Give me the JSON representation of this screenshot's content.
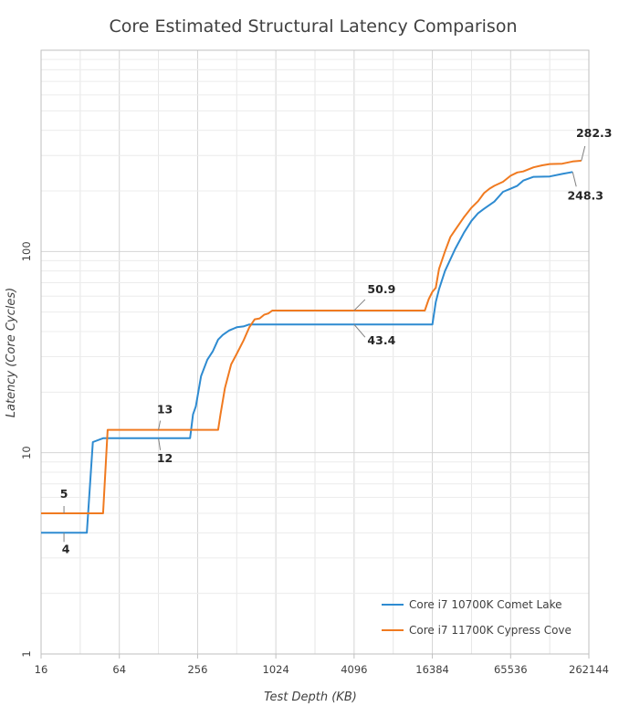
{
  "chart_data": {
    "type": "line",
    "title": "Core Estimated Structural Latency Comparison",
    "xlabel": "Test Depth (KB)",
    "ylabel": "Latency (Core Cycles)",
    "x_scale": "log2",
    "y_scale": "log10",
    "xlim": [
      16,
      262144
    ],
    "ylim": [
      1,
      1000
    ],
    "x_ticks": [
      "16",
      "64",
      "256",
      "1024",
      "4096",
      "16384",
      "65536",
      "262144"
    ],
    "y_ticks": [
      "1",
      "10",
      "100"
    ],
    "legend_position": "bottom-right",
    "grid": true,
    "series": [
      {
        "name": "Core i7 10700K Comet Lake",
        "color": "#2e8bd1",
        "points": [
          [
            16,
            4
          ],
          [
            36,
            4
          ],
          [
            40,
            11.3
          ],
          [
            48,
            11.8
          ],
          [
            56,
            11.8
          ],
          [
            64,
            11.8
          ],
          [
            96,
            11.8
          ],
          [
            128,
            11.8
          ],
          [
            192,
            11.8
          ],
          [
            224,
            11.8
          ],
          [
            236,
            15.5
          ],
          [
            248,
            17
          ],
          [
            272,
            24
          ],
          [
            304,
            29
          ],
          [
            336,
            32
          ],
          [
            368,
            36.5
          ],
          [
            400,
            38.5
          ],
          [
            448,
            40.5
          ],
          [
            512,
            42
          ],
          [
            576,
            42.4
          ],
          [
            640,
            43.4
          ],
          [
            1024,
            43.4
          ],
          [
            2048,
            43.4
          ],
          [
            4096,
            43.4
          ],
          [
            8192,
            43.4
          ],
          [
            12288,
            43.4
          ],
          [
            16384,
            43.4
          ],
          [
            17408,
            56
          ],
          [
            18432,
            65
          ],
          [
            20480,
            80
          ],
          [
            24576,
            103
          ],
          [
            28672,
            124
          ],
          [
            32768,
            142
          ],
          [
            36864,
            155
          ],
          [
            40960,
            163
          ],
          [
            49152,
            177
          ],
          [
            57344,
            198
          ],
          [
            65536,
            205
          ],
          [
            73728,
            212
          ],
          [
            81920,
            225
          ],
          [
            98304,
            235
          ],
          [
            131072,
            236
          ],
          [
            163840,
            243
          ],
          [
            196608,
            248.3
          ]
        ]
      },
      {
        "name": "Core i7 11700K Cypress Cove",
        "color": "#f07a20",
        "points": [
          [
            16,
            5
          ],
          [
            48,
            5
          ],
          [
            52,
            13
          ],
          [
            64,
            13
          ],
          [
            128,
            13
          ],
          [
            256,
            13
          ],
          [
            368,
            13
          ],
          [
            384,
            15.5
          ],
          [
            416,
            21
          ],
          [
            464,
            27.5
          ],
          [
            512,
            31
          ],
          [
            576,
            36
          ],
          [
            640,
            42
          ],
          [
            704,
            46
          ],
          [
            768,
            46.5
          ],
          [
            832,
            48.5
          ],
          [
            896,
            49.2
          ],
          [
            960,
            50.9
          ],
          [
            1024,
            50.9
          ],
          [
            2048,
            50.9
          ],
          [
            4096,
            50.9
          ],
          [
            8192,
            50.9
          ],
          [
            14336,
            50.9
          ],
          [
            15360,
            58
          ],
          [
            16384,
            63
          ],
          [
            17408,
            66
          ],
          [
            18432,
            82
          ],
          [
            20480,
            100
          ],
          [
            22528,
            118
          ],
          [
            24576,
            128
          ],
          [
            28672,
            148
          ],
          [
            32768,
            165
          ],
          [
            36864,
            178
          ],
          [
            40960,
            195
          ],
          [
            45056,
            205
          ],
          [
            49152,
            212
          ],
          [
            57344,
            222
          ],
          [
            65536,
            238
          ],
          [
            73728,
            247
          ],
          [
            81920,
            250
          ],
          [
            98304,
            262
          ],
          [
            114688,
            268
          ],
          [
            131072,
            272
          ],
          [
            163840,
            273
          ],
          [
            196608,
            280
          ],
          [
            229376,
            282.3
          ]
        ]
      }
    ],
    "annotations": [
      {
        "text": "282.3",
        "x": 229376,
        "y": 282.3,
        "series": 1
      },
      {
        "text": "248.3",
        "x": 196608,
        "y": 248.3,
        "series": 0
      },
      {
        "text": "50.9",
        "x": 4096,
        "y": 50.9,
        "series": 1
      },
      {
        "text": "43.4",
        "x": 4096,
        "y": 43.4,
        "series": 0
      },
      {
        "text": "13",
        "x": 128,
        "y": 13,
        "series": 1
      },
      {
        "text": "12",
        "x": 128,
        "y": 11.8,
        "series": 0
      },
      {
        "text": "5",
        "x": 24,
        "y": 5,
        "series": 1
      },
      {
        "text": "4",
        "x": 24,
        "y": 4,
        "series": 0
      }
    ]
  }
}
